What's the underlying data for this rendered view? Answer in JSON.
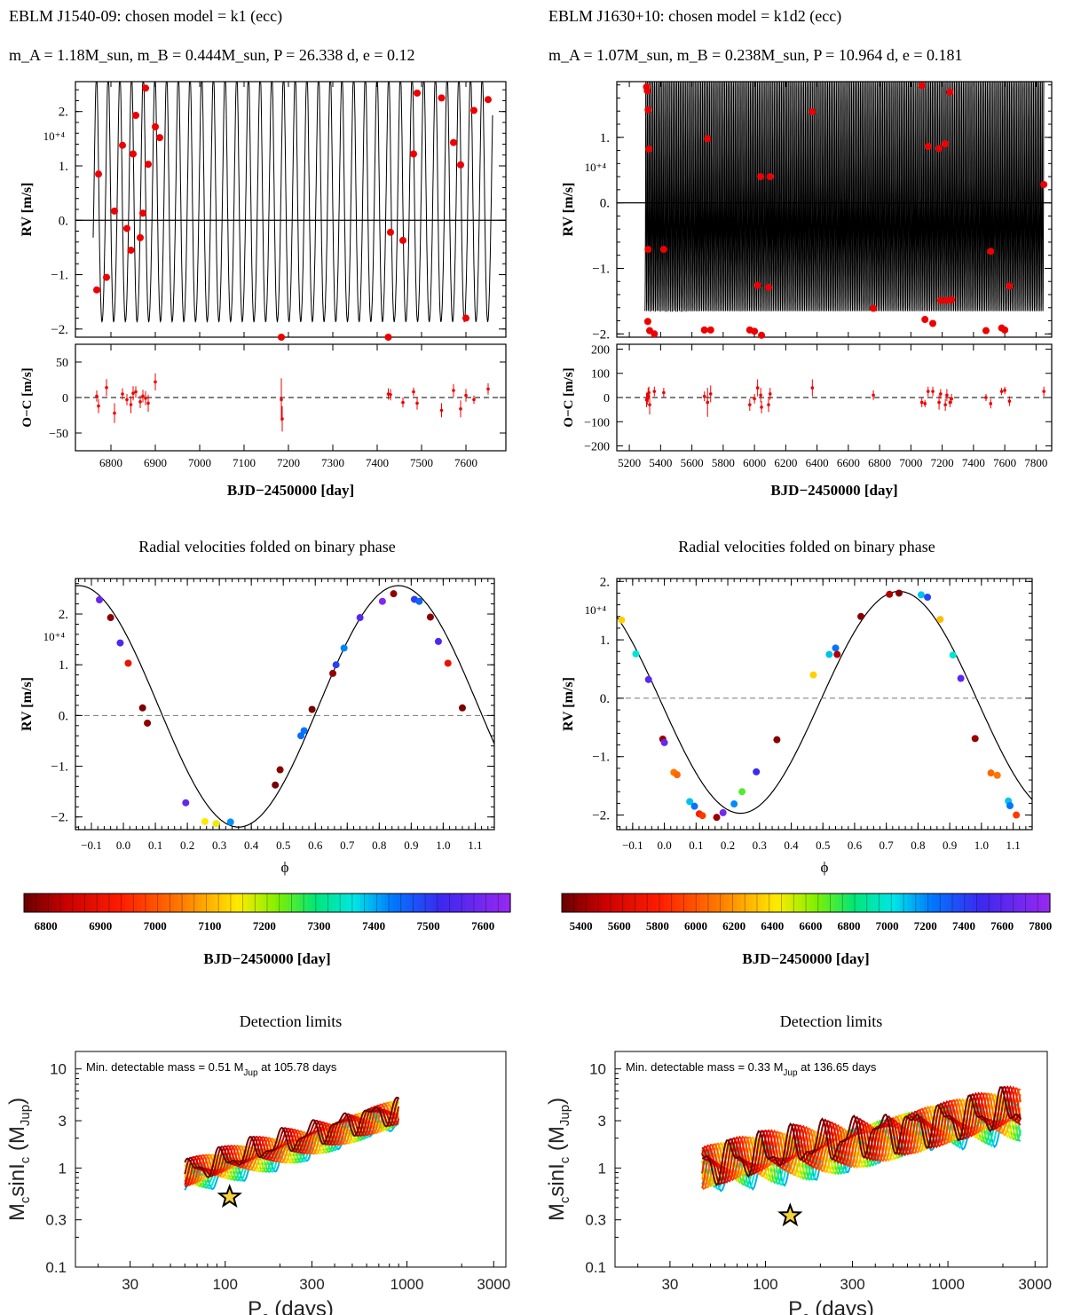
{
  "chart_data": [
    {
      "id": "rv_time_left",
      "type": "scatter",
      "header": "EBLM J1540-09: chosen model = k1 (ecc)",
      "params": "m_A = 1.18M_sun, m_B = 0.444M_sun, P = 26.338 d, e = 0.12",
      "ylabel": "RV [m/s]",
      "ylim": [
        -21500,
        25500
      ],
      "yticks": [
        -20000,
        -10000,
        0,
        10000,
        20000
      ],
      "ytick_labels": [
        "−2.",
        "−1.",
        "0.",
        "1.",
        "2."
      ],
      "exponent_label": "10⁺⁴",
      "xlim": [
        6720,
        7690
      ],
      "model": {
        "period": 26.338,
        "amplitude": 23000,
        "offset": 1800,
        "e": 0.12
      },
      "points": [
        [
          6768,
          -12800
        ],
        [
          6772,
          8500
        ],
        [
          6790,
          -10500
        ],
        [
          6808,
          1700
        ],
        [
          6826,
          13800
        ],
        [
          6836,
          -1500
        ],
        [
          6845,
          -5500
        ],
        [
          6850,
          12200
        ],
        [
          6856,
          19300
        ],
        [
          6866,
          -3200
        ],
        [
          6872,
          1300
        ],
        [
          6878,
          24300
        ],
        [
          6884,
          10300
        ],
        [
          6900,
          17200
        ],
        [
          6910,
          15200
        ],
        [
          7184,
          -21500
        ],
        [
          7425,
          -21500
        ],
        [
          7430,
          -2200
        ],
        [
          7458,
          -3700
        ],
        [
          7482,
          12200
        ],
        [
          7490,
          23400
        ],
        [
          7545,
          22500
        ],
        [
          7572,
          14300
        ],
        [
          7588,
          10200
        ],
        [
          7600,
          -18000
        ],
        [
          7618,
          20200
        ],
        [
          7650,
          22200
        ]
      ],
      "resid": {
        "ylabel": "O−C [m/s]",
        "ylim": [
          -75,
          75
        ],
        "yticks": [
          -50,
          0,
          50
        ],
        "ytick_labels": [
          "−50",
          "0",
          "50"
        ],
        "xticks": [
          6800,
          6900,
          7000,
          7100,
          7200,
          7300,
          7400,
          7500,
          7600
        ],
        "xlabel": "BJD−2450000 [day]",
        "points": [
          [
            6768,
            2,
            8
          ],
          [
            6772,
            -12,
            10
          ],
          [
            6790,
            14,
            12
          ],
          [
            6808,
            -22,
            14
          ],
          [
            6826,
            5,
            8
          ],
          [
            6836,
            -3,
            8
          ],
          [
            6845,
            -10,
            12
          ],
          [
            6850,
            6,
            10
          ],
          [
            6856,
            8,
            8
          ],
          [
            6866,
            -6,
            9
          ],
          [
            6872,
            2,
            9
          ],
          [
            6878,
            -1,
            10
          ],
          [
            6884,
            -8,
            12
          ],
          [
            6900,
            22,
            12
          ],
          [
            7184,
            -3,
            30
          ],
          [
            7186,
            -30,
            18
          ],
          [
            7425,
            5,
            8
          ],
          [
            7430,
            4,
            8
          ],
          [
            7458,
            -7,
            7
          ],
          [
            7482,
            8,
            6
          ],
          [
            7490,
            -8,
            9
          ],
          [
            7545,
            -18,
            10
          ],
          [
            7572,
            10,
            9
          ],
          [
            7588,
            -16,
            12
          ],
          [
            7600,
            3,
            9
          ],
          [
            7618,
            -3,
            6
          ],
          [
            7650,
            12,
            8
          ]
        ]
      }
    },
    {
      "id": "rv_time_right",
      "type": "scatter",
      "header": "EBLM J1630+10: chosen model = k1d2 (ecc)",
      "params": "m_A = 1.07M_sun, m_B = 0.238M_sun, P = 10.964 d, e = 0.181",
      "ylabel": "RV [m/s]",
      "ylim": [
        -20500,
        18500
      ],
      "yticks": [
        -20000,
        -10000,
        0,
        10000
      ],
      "ytick_labels": [
        "−2.",
        "−1.",
        "0.",
        "1."
      ],
      "exponent_label": "10⁺⁴",
      "xlim": [
        5120,
        7900
      ],
      "model": {
        "period": 10.964,
        "amplitude": 19000,
        "offset": -700,
        "e": 0.181,
        "xstart": 5300,
        "xend": 7850
      },
      "points": [
        [
          5310,
          17700
        ],
        [
          5315,
          17100
        ],
        [
          5320,
          14200
        ],
        [
          5325,
          8200
        ],
        [
          5320,
          -7100
        ],
        [
          5318,
          -18100
        ],
        [
          5330,
          -19500
        ],
        [
          5360,
          -20000
        ],
        [
          5420,
          -7100
        ],
        [
          5680,
          -19400
        ],
        [
          5700,
          9800
        ],
        [
          5720,
          -19400
        ],
        [
          5970,
          -19400
        ],
        [
          6000,
          -19600
        ],
        [
          6020,
          -12600
        ],
        [
          6040,
          4000
        ],
        [
          6045,
          -20200
        ],
        [
          6090,
          -12900
        ],
        [
          6100,
          4000
        ],
        [
          6370,
          13900
        ],
        [
          6760,
          -16100
        ],
        [
          7070,
          17900
        ],
        [
          7090,
          -17800
        ],
        [
          7110,
          8600
        ],
        [
          7140,
          -18400
        ],
        [
          7180,
          8300
        ],
        [
          7190,
          -14900
        ],
        [
          7220,
          9000
        ],
        [
          7230,
          -14900
        ],
        [
          7250,
          16900
        ],
        [
          7260,
          -14800
        ],
        [
          7480,
          -19500
        ],
        [
          7510,
          -7400
        ],
        [
          7580,
          -19100
        ],
        [
          7600,
          -19400
        ],
        [
          7630,
          -12700
        ],
        [
          7850,
          2800
        ]
      ],
      "resid": {
        "ylabel": "O−C [m/s]",
        "ylim": [
          -220,
          220
        ],
        "yticks": [
          -200,
          -100,
          0,
          100,
          200
        ],
        "ytick_labels": [
          "−200",
          "−100",
          "0",
          "100",
          "200"
        ],
        "xticks": [
          5200,
          5400,
          5600,
          5800,
          6000,
          6200,
          6400,
          6600,
          6800,
          7000,
          7200,
          7400,
          7600,
          7800
        ],
        "xlabel": "BJD−2450000 [day]",
        "points": [
          [
            5310,
            -10,
            30
          ],
          [
            5315,
            -5,
            25
          ],
          [
            5320,
            10,
            30
          ],
          [
            5325,
            20,
            25
          ],
          [
            5330,
            -30,
            40
          ],
          [
            5360,
            25,
            20
          ],
          [
            5420,
            20,
            20
          ],
          [
            5680,
            5,
            20
          ],
          [
            5700,
            -20,
            60
          ],
          [
            5720,
            15,
            35
          ],
          [
            5970,
            -30,
            25
          ],
          [
            6000,
            -5,
            20
          ],
          [
            6020,
            40,
            35
          ],
          [
            6040,
            10,
            30
          ],
          [
            6045,
            -40,
            25
          ],
          [
            6090,
            -30,
            30
          ],
          [
            6100,
            15,
            25
          ],
          [
            6370,
            40,
            35
          ],
          [
            6760,
            10,
            20
          ],
          [
            7070,
            -20,
            20
          ],
          [
            7090,
            -25,
            15
          ],
          [
            7110,
            25,
            20
          ],
          [
            7140,
            25,
            20
          ],
          [
            7180,
            -20,
            30
          ],
          [
            7190,
            15,
            20
          ],
          [
            7220,
            -30,
            25
          ],
          [
            7230,
            10,
            25
          ],
          [
            7250,
            -20,
            20
          ],
          [
            7260,
            -5,
            20
          ],
          [
            7480,
            0,
            15
          ],
          [
            7510,
            -25,
            20
          ],
          [
            7580,
            25,
            15
          ],
          [
            7600,
            30,
            15
          ],
          [
            7630,
            -15,
            20
          ],
          [
            7850,
            25,
            20
          ]
        ]
      }
    },
    {
      "id": "phase_left",
      "type": "scatter",
      "title": "Radial velocities folded on binary phase",
      "ylabel": "RV [m/s]",
      "xlabel": "ϕ",
      "ylim": [
        -22500,
        27000
      ],
      "xlim": [
        -0.15,
        1.16
      ],
      "yticks": [
        -20000,
        -10000,
        0,
        10000,
        20000
      ],
      "ytick_labels": [
        "−2.",
        "−1.",
        "0.",
        "1.",
        "2."
      ],
      "xticks": [
        -0.1,
        0,
        0.1,
        0.2,
        0.3,
        0.4,
        0.5,
        0.6,
        0.7,
        0.8,
        0.9,
        1.0,
        1.1
      ],
      "xtick_labels": [
        "−0.1",
        "0.0",
        "0.1",
        "0.2",
        "0.3",
        "0.4",
        "0.5",
        "0.6",
        "0.7",
        "0.8",
        "0.9",
        "1.0",
        "1.1"
      ],
      "exponent_label": "10⁺⁴",
      "model": {
        "K": 23800,
        "gamma": 1800,
        "tmax": 0.86
      },
      "points": [
        [
          -0.075,
          22800,
          7590
        ],
        [
          -0.04,
          19300,
          6785
        ],
        [
          -0.01,
          14300,
          7550
        ],
        [
          0.015,
          10300,
          6900
        ],
        [
          0.06,
          1500,
          6772
        ],
        [
          0.075,
          -1500,
          6784
        ],
        [
          0.195,
          -17200,
          7580
        ],
        [
          0.255,
          -20900,
          7150
        ],
        [
          0.29,
          -21300,
          7160
        ],
        [
          0.335,
          -21000,
          7420
        ],
        [
          0.475,
          -13700,
          6768
        ],
        [
          0.49,
          -10700,
          6780
        ],
        [
          0.555,
          -4000,
          7450
        ],
        [
          0.565,
          -3000,
          7440
        ],
        [
          0.59,
          1200,
          6768
        ],
        [
          0.655,
          8300,
          6790
        ],
        [
          0.665,
          10000,
          7500
        ],
        [
          0.69,
          13300,
          7430
        ],
        [
          0.74,
          19300,
          7560
        ],
        [
          0.81,
          22500,
          7620
        ],
        [
          0.845,
          24000,
          6790
        ],
        [
          0.91,
          22900,
          7500
        ],
        [
          0.925,
          22500,
          7460
        ],
        [
          0.96,
          19400,
          6785
        ],
        [
          0.985,
          14600,
          7550
        ],
        [
          1.015,
          10300,
          6900
        ],
        [
          1.06,
          1500,
          6772
        ]
      ],
      "colorbar": {
        "label": "BJD−2450000 [day]",
        "range": [
          6760,
          7650
        ],
        "ticks": [
          6800,
          6900,
          7000,
          7100,
          7200,
          7300,
          7400,
          7500,
          7600
        ]
      }
    },
    {
      "id": "phase_right",
      "type": "scatter",
      "title": "Radial velocities folded on binary phase",
      "ylabel": "RV [m/s]",
      "xlabel": "ϕ",
      "ylim": [
        -22500,
        20500
      ],
      "xlim": [
        -0.15,
        1.16
      ],
      "yticks": [
        -20000,
        -10000,
        0,
        10000,
        20000
      ],
      "ytick_labels": [
        "−2.",
        "−1.",
        "0.",
        "1.",
        "2."
      ],
      "xticks": [
        -0.1,
        0,
        0.1,
        0.2,
        0.3,
        0.4,
        0.5,
        0.6,
        0.7,
        0.8,
        0.9,
        1.0,
        1.1
      ],
      "xtick_labels": [
        "−0.1",
        "0.0",
        "0.1",
        "0.2",
        "0.3",
        "0.4",
        "0.5",
        "0.6",
        "0.7",
        "0.8",
        "0.9",
        "1.0",
        "1.1"
      ],
      "exponent_label": "10⁺⁴",
      "model": {
        "K": 19000,
        "gamma": -700,
        "tmax": 0.74
      },
      "points": [
        [
          -0.135,
          13400,
          6350
        ],
        [
          -0.09,
          7600,
          7000
        ],
        [
          -0.05,
          3200,
          7620
        ],
        [
          -0.005,
          -7000,
          5400
        ],
        [
          0.0,
          -7600,
          7650
        ],
        [
          0.03,
          -12700,
          6100
        ],
        [
          0.04,
          -13100,
          6050
        ],
        [
          0.08,
          -17700,
          7100
        ],
        [
          0.095,
          -18500,
          7250
        ],
        [
          0.11,
          -19800,
          5800
        ],
        [
          0.12,
          -20100,
          5900
        ],
        [
          0.165,
          -20400,
          5400
        ],
        [
          0.185,
          -19600,
          7700
        ],
        [
          0.22,
          -18100,
          7200
        ],
        [
          0.245,
          -16000,
          6700
        ],
        [
          0.29,
          -12600,
          7500
        ],
        [
          0.355,
          -7100,
          5350
        ],
        [
          0.47,
          4000,
          6350
        ],
        [
          0.52,
          7500,
          7100
        ],
        [
          0.54,
          8600,
          7250
        ],
        [
          0.545,
          7500,
          5450
        ],
        [
          0.62,
          14000,
          5350
        ],
        [
          0.71,
          17800,
          5450
        ],
        [
          0.74,
          18000,
          5350
        ],
        [
          0.81,
          17700,
          7100
        ],
        [
          0.83,
          17300,
          7400
        ],
        [
          0.87,
          13500,
          6300
        ],
        [
          0.91,
          7400,
          7000
        ],
        [
          0.935,
          3400,
          7620
        ],
        [
          0.98,
          -6900,
          5400
        ],
        [
          1.03,
          -12800,
          6050
        ],
        [
          1.05,
          -13200,
          6100
        ],
        [
          1.085,
          -17600,
          7100
        ],
        [
          1.09,
          -18400,
          7250
        ],
        [
          1.11,
          -20000,
          5900
        ]
      ],
      "colorbar": {
        "label": "BJD−2450000 [day]",
        "range": [
          5300,
          7850
        ],
        "ticks": [
          5400,
          5600,
          5800,
          6000,
          6200,
          6400,
          6600,
          6800,
          7000,
          7200,
          7400,
          7600,
          7800
        ]
      }
    },
    {
      "id": "detlim_left",
      "type": "line",
      "title": "Detection limits",
      "annotation": "Min. detectable mass = 0.51 M",
      "annotation_sub": "Jup",
      "annotation_tail": " at 105.78 days",
      "ylabel_main": "M",
      "ylabel_sub1": "c",
      "ylabel_mid": "sinI",
      "ylabel_sub2": "c",
      "ylabel_paren": " (M",
      "ylabel_sub3": "Jup",
      "ylabel_close": ")",
      "xlabel_main": "P",
      "xlabel_sub": "c",
      "xlabel_tail": " (days)",
      "xlim": [
        15,
        3500
      ],
      "ylim": [
        0.1,
        15
      ],
      "log_x": true,
      "log_y": true,
      "xticks": [
        30,
        100,
        300,
        1000,
        3000
      ],
      "yticks": [
        0.1,
        0.3,
        1,
        3,
        10
      ],
      "curve_range": [
        60,
        900
      ],
      "curve_base": 0.8,
      "curve_slope": 0.55,
      "curve_noise": 0.28,
      "n_curves": 16,
      "star": [
        105.78,
        0.51
      ]
    },
    {
      "id": "detlim_right",
      "type": "line",
      "title": "Detection limits",
      "annotation": "Min. detectable mass = 0.33 M",
      "annotation_sub": "Jup",
      "annotation_tail": " at 136.65 days",
      "ylabel_main": "M",
      "ylabel_sub1": "c",
      "ylabel_mid": "sinI",
      "ylabel_sub2": "c",
      "ylabel_paren": " (M",
      "ylabel_sub3": "Jup",
      "ylabel_close": ")",
      "xlabel_main": "P",
      "xlabel_sub": "c",
      "xlabel_tail": " (days)",
      "xlim": [
        15,
        3500
      ],
      "ylim": [
        0.1,
        15
      ],
      "log_x": true,
      "log_y": true,
      "xticks": [
        30,
        100,
        300,
        1000,
        3000
      ],
      "yticks": [
        0.1,
        0.3,
        1,
        3,
        10
      ],
      "curve_range": [
        45,
        2500
      ],
      "curve_base": 0.95,
      "curve_slope": 0.33,
      "curve_noise": 0.45,
      "n_curves": 16,
      "star": [
        136.65,
        0.33
      ]
    }
  ]
}
